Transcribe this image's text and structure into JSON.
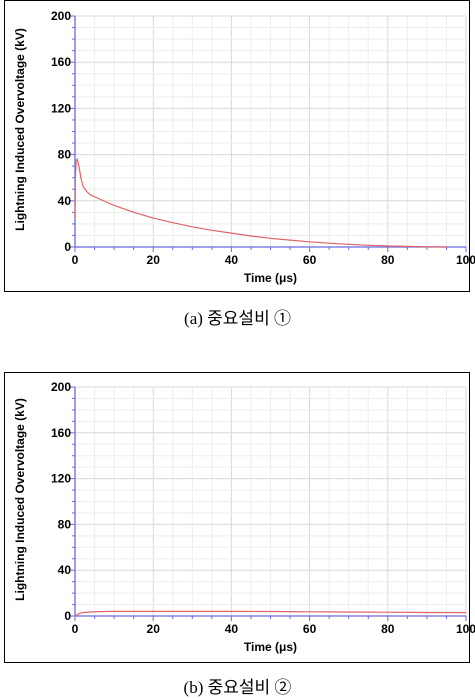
{
  "colors": {
    "series": "#e06464",
    "axis": "#6a6ae0",
    "grid": "#d9d9d9",
    "grid_minor": "#ededed"
  },
  "chart_data": [
    {
      "type": "line",
      "xlabel": "Time (μs)",
      "ylabel": "Lightning Induced Overvoltage (kV)",
      "xlim": [
        0,
        100
      ],
      "ylim": [
        0,
        200
      ],
      "xticks": [
        0,
        20,
        40,
        60,
        80,
        100
      ],
      "yticks": [
        0,
        40,
        80,
        120,
        160,
        200
      ],
      "grid": true,
      "series": [
        {
          "color": "#e06464",
          "x": [
            0,
            0.1,
            0.3,
            0.6,
            1,
            1.5,
            2,
            3,
            4,
            6,
            8,
            10,
            15,
            20,
            25,
            30,
            35,
            40,
            45,
            50,
            55,
            60,
            65,
            70,
            75,
            80,
            85,
            90,
            95
          ],
          "y": [
            25,
            60,
            75,
            76,
            70,
            60,
            53,
            48,
            45,
            42,
            39,
            36,
            30,
            25,
            21,
            17.5,
            14.5,
            12,
            9.5,
            7.5,
            6,
            4.5,
            3.3,
            2.3,
            1.5,
            0.9,
            0.5,
            0.2,
            0
          ]
        }
      ]
    },
    {
      "type": "line",
      "xlabel": "Time (μs)",
      "ylabel": "Lightning Induced Overvoltage (kV)",
      "xlim": [
        0,
        100
      ],
      "ylim": [
        0,
        200
      ],
      "xticks": [
        0,
        20,
        40,
        60,
        80,
        100
      ],
      "yticks": [
        0,
        40,
        80,
        120,
        160,
        200
      ],
      "grid": true,
      "series": [
        {
          "color": "#e06464",
          "x": [
            0,
            1,
            2,
            4,
            6,
            10,
            15,
            20,
            30,
            40,
            50,
            60,
            70,
            80,
            90,
            100
          ],
          "y": [
            0,
            2,
            3,
            3.5,
            3.8,
            4,
            4,
            4,
            4,
            4,
            3.9,
            3.7,
            3.5,
            3.3,
            3.1,
            3
          ]
        }
      ]
    }
  ],
  "captions": {
    "a": "(a)  중요설비  ①",
    "b": "(b)  중요설비  ②"
  }
}
